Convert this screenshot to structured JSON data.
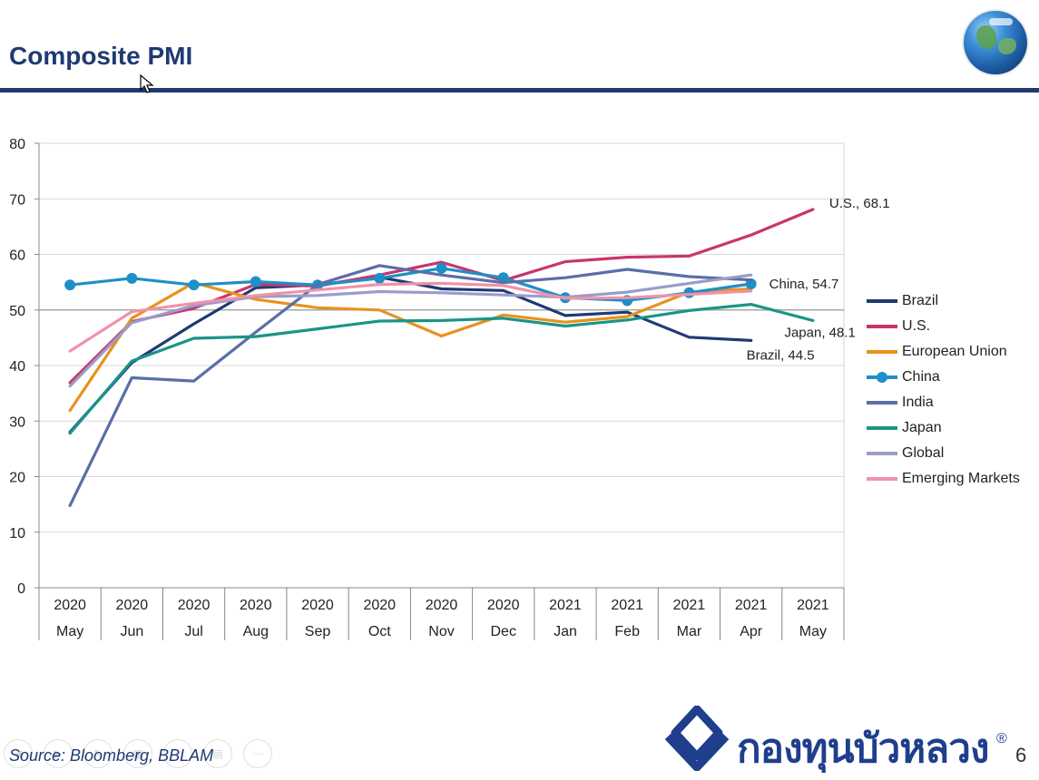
{
  "slide": {
    "title": "Composite PMI",
    "source": "Source: Bloomberg, BBLAM",
    "page_number": "6",
    "logo_text": "กองทุนบัวหลวง",
    "logo_mark": "®"
  },
  "chart_data": {
    "type": "line",
    "title": "",
    "xlabel": "",
    "ylabel": "",
    "ylim": [
      0,
      80
    ],
    "yticks": [
      0,
      10,
      20,
      30,
      40,
      50,
      60,
      70,
      80
    ],
    "grid": true,
    "legend_position": "right",
    "categories": [
      {
        "year": "2020",
        "month": "May"
      },
      {
        "year": "2020",
        "month": "Jun"
      },
      {
        "year": "2020",
        "month": "Jul"
      },
      {
        "year": "2020",
        "month": "Aug"
      },
      {
        "year": "2020",
        "month": "Sep"
      },
      {
        "year": "2020",
        "month": "Oct"
      },
      {
        "year": "2020",
        "month": "Nov"
      },
      {
        "year": "2020",
        "month": "Dec"
      },
      {
        "year": "2021",
        "month": "Jan"
      },
      {
        "year": "2021",
        "month": "Feb"
      },
      {
        "year": "2021",
        "month": "Mar"
      },
      {
        "year": "2021",
        "month": "Apr"
      },
      {
        "year": "2021",
        "month": "May"
      }
    ],
    "series": [
      {
        "name": "Brazil",
        "color": "#1f3a73",
        "markers": false,
        "values": [
          28,
          40.5,
          47.5,
          54,
          54.5,
          55.9,
          53.8,
          53.5,
          49,
          49.6,
          45.1,
          44.5,
          null
        ]
      },
      {
        "name": "U.S.",
        "color": "#c9356b",
        "markers": false,
        "values": [
          36.9,
          47.9,
          50.3,
          54.6,
          54.3,
          56.3,
          58.6,
          55.3,
          58.7,
          59.5,
          59.7,
          63.5,
          68.1
        ]
      },
      {
        "name": "European Union",
        "color": "#e8921c",
        "markers": false,
        "values": [
          31.9,
          48.5,
          54.9,
          51.9,
          50.4,
          50.0,
          45.3,
          49.1,
          47.8,
          48.8,
          53.2,
          53.8,
          null
        ]
      },
      {
        "name": "China",
        "color": "#1f8fc7",
        "markers": true,
        "values": [
          54.5,
          55.7,
          54.5,
          55.1,
          54.5,
          55.7,
          57.5,
          55.8,
          52.2,
          51.7,
          53.1,
          54.7,
          null
        ]
      },
      {
        "name": "India",
        "color": "#5a6ea8",
        "markers": false,
        "values": [
          14.8,
          37.8,
          37.2,
          46,
          54.6,
          58,
          56.3,
          54.9,
          55.8,
          57.3,
          56.0,
          55.4,
          null
        ]
      },
      {
        "name": "Japan",
        "color": "#1b9488",
        "markers": false,
        "values": [
          27.8,
          40.8,
          44.9,
          45.2,
          46.6,
          48.0,
          48.1,
          48.5,
          47.1,
          48.2,
          49.9,
          51.0,
          48.1
        ]
      },
      {
        "name": "Global",
        "color": "#9a9cc8",
        "markers": false,
        "values": [
          36.3,
          47.7,
          50.8,
          52.4,
          52.6,
          53.3,
          53.1,
          52.7,
          52.3,
          53.2,
          54.8,
          56.3,
          null
        ]
      },
      {
        "name": "Emerging Markets",
        "color": "#ef93a9",
        "markers": false,
        "values": [
          42.6,
          49.7,
          51.2,
          52.6,
          53.6,
          54.6,
          54.8,
          54.4,
          52.1,
          52.2,
          52.8,
          53.4,
          null
        ]
      }
    ],
    "annotations": [
      {
        "text": "U.S., 68.1",
        "series": "U.S."
      },
      {
        "text": "China, 54.7",
        "series": "China"
      },
      {
        "text": "Japan, 48.1",
        "series": "Japan"
      },
      {
        "text": "Brazil, 44.5",
        "series": "Brazil"
      }
    ]
  }
}
